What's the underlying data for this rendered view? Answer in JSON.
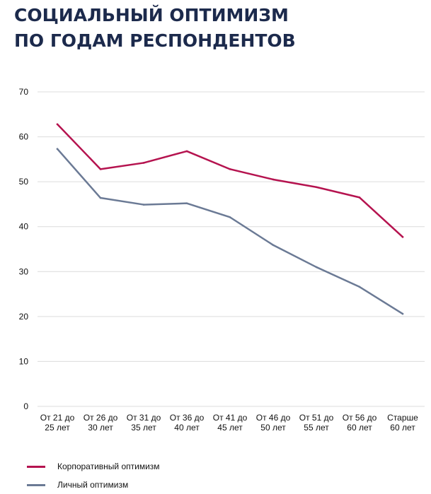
{
  "title_lines": [
    "СОЦИАЛЬНЫЙ ОПТИМИЗМ",
    "ПО ГОДАМ РЕСПОНДЕНТОВ"
  ],
  "colors": {
    "title": "#1c2a4c",
    "corporate": "#b5134f",
    "personal": "#6b7a95",
    "grid": "#dcdcdc"
  },
  "chart_data": {
    "type": "line",
    "title": "СОЦИАЛЬНЫЙ ОПТИМИЗМ ПО ГОДАМ РЕСПОНДЕНТОВ",
    "categories": [
      [
        "От 21 до",
        "25 лет"
      ],
      [
        "От 26 до",
        "30 лет"
      ],
      [
        "От 31 до",
        "35 лет"
      ],
      [
        "От 36 до",
        "40 лет"
      ],
      [
        "От 41 до",
        "45 лет"
      ],
      [
        "От 46 до",
        "50 лет"
      ],
      [
        "От 51 до",
        "55 лет"
      ],
      [
        "От 56 до",
        "60 лет"
      ],
      [
        "Старше",
        "60 лет"
      ]
    ],
    "series": [
      {
        "name": "Корпоративный оптимизм",
        "color": "#b5134f",
        "values": [
          62.8,
          52.8,
          54.2,
          56.8,
          52.8,
          50.5,
          48.8,
          46.5,
          37.7
        ]
      },
      {
        "name": "Личный оптимизм",
        "color": "#6b7a95",
        "values": [
          57.3,
          46.4,
          44.9,
          45.2,
          42.1,
          35.9,
          31.0,
          26.6,
          20.6
        ]
      }
    ],
    "yticks": [
      0,
      10,
      20,
      30,
      40,
      50,
      60,
      70
    ],
    "ylim": [
      0,
      70
    ],
    "grid": true,
    "legend_position": "bottom-left",
    "xlabel": "",
    "ylabel": ""
  }
}
